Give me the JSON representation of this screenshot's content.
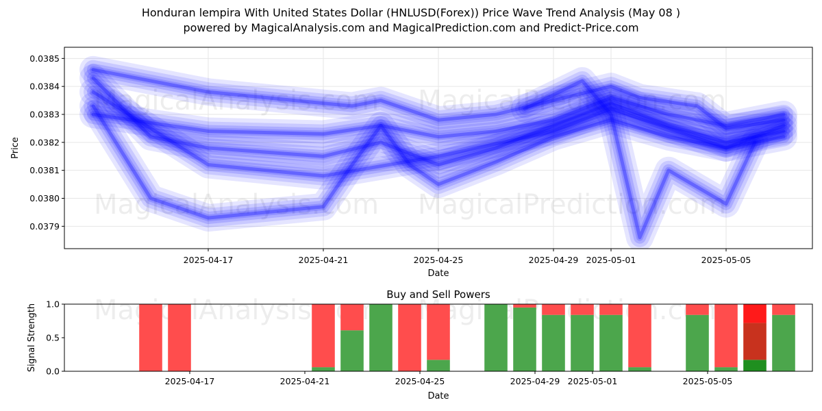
{
  "title_line1": "Honduran lempira With United States Dollar (HNLUSD(Forex)) Price Wave Trend Analysis (May 08 )",
  "title_line2": "powered by MagicalAnalysis.com and MagicalPrediction.com and Predict-Price.com",
  "watermarks": [
    "MagicalAnalysis.com",
    "MagicalPrediction.com"
  ],
  "colors": {
    "wave": "#0000ff",
    "sell": "#ff4d4d",
    "buy": "#4ca64c",
    "strong_sell": "#ff1a1a",
    "mid_sell": "#c8321e",
    "strong_buy": "#1f8f1f"
  },
  "chart_data": [
    {
      "type": "line",
      "ylabel": "Price",
      "xlabel": "Date",
      "x_ticks": [
        "2025-04-17",
        "2025-04-21",
        "2025-04-25",
        "2025-04-29",
        "2025-05-01",
        "2025-05-05"
      ],
      "y_ticks": [
        "0.0379",
        "0.0380",
        "0.0381",
        "0.0382",
        "0.0383",
        "0.0384",
        "0.0385"
      ],
      "ylim": [
        0.03782,
        0.03854
      ],
      "xlim": [
        "2025-04-12",
        "2025-05-08"
      ],
      "grid": true,
      "series": [
        {
          "x": [
            "2025-04-13",
            "2025-04-17",
            "2025-04-21",
            "2025-04-22",
            "2025-04-23",
            "2025-04-25",
            "2025-04-27",
            "2025-04-29",
            "2025-05-01",
            "2025-05-02",
            "2025-05-04",
            "2025-05-05",
            "2025-05-07"
          ],
          "values": [
            0.03846,
            0.03838,
            0.03834,
            0.03833,
            0.03835,
            0.03828,
            0.0383,
            0.03835,
            0.0384,
            0.03836,
            0.03833,
            0.03825,
            0.03828
          ]
        },
        {
          "x": [
            "2025-04-13",
            "2025-04-17",
            "2025-04-21",
            "2025-04-23",
            "2025-04-25",
            "2025-04-27",
            "2025-04-29",
            "2025-05-01",
            "2025-05-03",
            "2025-05-05",
            "2025-05-07"
          ],
          "values": [
            0.0383,
            0.03824,
            0.03823,
            0.03826,
            0.03822,
            0.03824,
            0.03828,
            0.03836,
            0.0383,
            0.03826,
            0.0383
          ]
        },
        {
          "x": [
            "2025-04-13",
            "2025-04-15",
            "2025-04-17",
            "2025-04-19",
            "2025-04-21",
            "2025-04-22",
            "2025-04-23",
            "2025-04-24",
            "2025-04-25",
            "2025-04-27",
            "2025-04-29",
            "2025-05-01",
            "2025-05-03",
            "2025-05-05",
            "2025-05-07"
          ],
          "values": [
            0.03833,
            0.038,
            0.03793,
            0.03795,
            0.03797,
            0.03812,
            0.03826,
            0.03812,
            0.03805,
            0.03813,
            0.03822,
            0.03828,
            0.03822,
            0.03818,
            0.03822
          ]
        },
        {
          "x": [
            "2025-04-13",
            "2025-04-15",
            "2025-04-17",
            "2025-04-21",
            "2025-04-23",
            "2025-04-25",
            "2025-04-27",
            "2025-04-29",
            "2025-05-01",
            "2025-05-03",
            "2025-05-05",
            "2025-05-07"
          ],
          "values": [
            0.03843,
            0.03822,
            0.03818,
            0.03815,
            0.0382,
            0.03812,
            0.03818,
            0.03826,
            0.03834,
            0.03826,
            0.0382,
            0.03824
          ]
        },
        {
          "x": [
            "2025-04-28",
            "2025-04-30",
            "2025-05-01",
            "2025-05-02",
            "2025-05-03",
            "2025-05-05",
            "2025-05-06"
          ],
          "values": [
            0.03832,
            0.03842,
            0.0383,
            0.03786,
            0.0381,
            0.03798,
            0.0382
          ]
        },
        {
          "x": [
            "2025-04-13",
            "2025-04-15",
            "2025-04-17",
            "2025-04-21",
            "2025-04-25",
            "2025-04-29",
            "2025-05-01",
            "2025-05-05",
            "2025-05-07"
          ],
          "values": [
            0.03838,
            0.03825,
            0.03812,
            0.03808,
            0.03815,
            0.03824,
            0.03832,
            0.03818,
            0.03826
          ]
        }
      ]
    },
    {
      "type": "bar",
      "title": "Buy and Sell Powers",
      "ylabel": "Signal Strength",
      "xlabel": "Date",
      "ylim": [
        0,
        1.0
      ],
      "y_ticks": [
        "0.0",
        "0.5",
        "1.0"
      ],
      "x_ticks": [
        "2025-04-17",
        "2025-04-21",
        "2025-04-25",
        "2025-04-29",
        "2025-05-01",
        "2025-05-05"
      ],
      "bars": [
        {
          "date": "2025-04-15",
          "buy": 0.0,
          "sell": 1.0
        },
        {
          "date": "2025-04-16",
          "buy": 0.0,
          "sell": 1.0
        },
        {
          "date": "2025-04-21",
          "buy": 0.06,
          "sell": 0.94
        },
        {
          "date": "2025-04-22",
          "buy": 0.61,
          "sell": 0.39
        },
        {
          "date": "2025-04-23",
          "buy": 1.0,
          "sell": 0.0
        },
        {
          "date": "2025-04-24",
          "buy": 0.0,
          "sell": 1.0
        },
        {
          "date": "2025-04-25",
          "buy": 0.17,
          "sell": 0.83
        },
        {
          "date": "2025-04-27",
          "buy": 1.0,
          "sell": 0.0
        },
        {
          "date": "2025-04-28",
          "buy": 0.95,
          "sell": 0.05
        },
        {
          "date": "2025-04-29",
          "buy": 0.84,
          "sell": 0.16
        },
        {
          "date": "2025-04-30",
          "buy": 0.84,
          "sell": 0.16
        },
        {
          "date": "2025-05-01",
          "buy": 0.84,
          "sell": 0.16
        },
        {
          "date": "2025-05-02",
          "buy": 0.06,
          "sell": 0.94
        },
        {
          "date": "2025-05-04",
          "buy": 0.84,
          "sell": 0.16
        },
        {
          "date": "2025-05-05",
          "buy": 0.06,
          "sell": 0.94
        },
        {
          "date": "2025-05-06",
          "buy": 0.17,
          "mid": 0.55,
          "sell": 0.28,
          "strong": true
        },
        {
          "date": "2025-05-07",
          "buy": 0.84,
          "sell": 0.16
        }
      ]
    }
  ]
}
